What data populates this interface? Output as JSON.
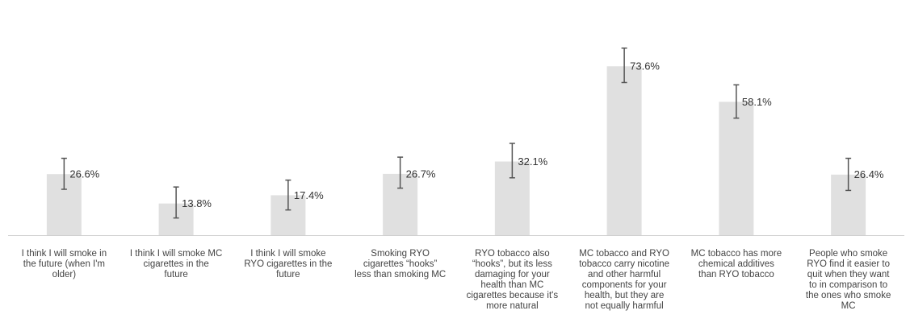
{
  "chart_data": {
    "type": "bar",
    "title": "",
    "xlabel": "",
    "ylabel": "",
    "ylim": [
      0,
      100
    ],
    "grid": false,
    "legend": "none",
    "bar_color": "#e0e0e0",
    "error_bar_color": "#555555",
    "categories": [
      "I think I will smoke in the future (when I'm older)",
      "I think I will smoke MC cigarettes in the future",
      "I think I will smoke RYO cigarettes in the future",
      "Smoking RYO cigarettes “hooks” less than smoking MC",
      "RYO tobacco also “hooks”, but its less damaging for your health than MC cigarettes because it's more natural",
      "MC tobacco and RYO tobacco carry nicotine and other harmful components for your health, but they are not equally harmful",
      "MC tobacco has more chemical additives than RYO tobacco",
      "People who smoke RYO find it easier to quit when they want to in comparison to the ones who smoke MC"
    ],
    "category_lines": [
      [
        "I think I will smoke in",
        "the future (when I'm",
        "older)"
      ],
      [
        "I think I will smoke MC",
        "cigarettes in the",
        "future"
      ],
      [
        "I think I will smoke",
        "RYO cigarettes in the",
        "future"
      ],
      [
        "Smoking RYO",
        "cigarettes “hooks”",
        "less than smoking MC"
      ],
      [
        "RYO tobacco also",
        "“hooks”, but its less",
        "damaging for your",
        "health than MC",
        "cigarettes because it's",
        "more natural"
      ],
      [
        "MC tobacco and RYO",
        "tobacco carry nicotine",
        "and other harmful",
        "components for your",
        "health, but they are",
        "not equally harmful"
      ],
      [
        "MC tobacco has more",
        "chemical additives",
        "than RYO tobacco"
      ],
      [
        "People who smoke",
        "RYO find it easier to",
        "quit when they want",
        "to in comparison to",
        "the ones who smoke",
        "MC"
      ]
    ],
    "values": [
      26.6,
      13.8,
      17.4,
      26.7,
      32.1,
      73.6,
      58.1,
      26.4
    ],
    "value_labels": [
      "26.6%",
      "13.8%",
      "17.4%",
      "26.7%",
      "32.1%",
      "73.6%",
      "58.1%",
      "26.4%"
    ],
    "error_low": [
      20.0,
      7.5,
      11.0,
      20.5,
      25.0,
      66.5,
      51.0,
      19.5
    ],
    "error_high": [
      33.5,
      21.0,
      24.0,
      34.0,
      40.0,
      81.5,
      65.5,
      33.5
    ]
  }
}
